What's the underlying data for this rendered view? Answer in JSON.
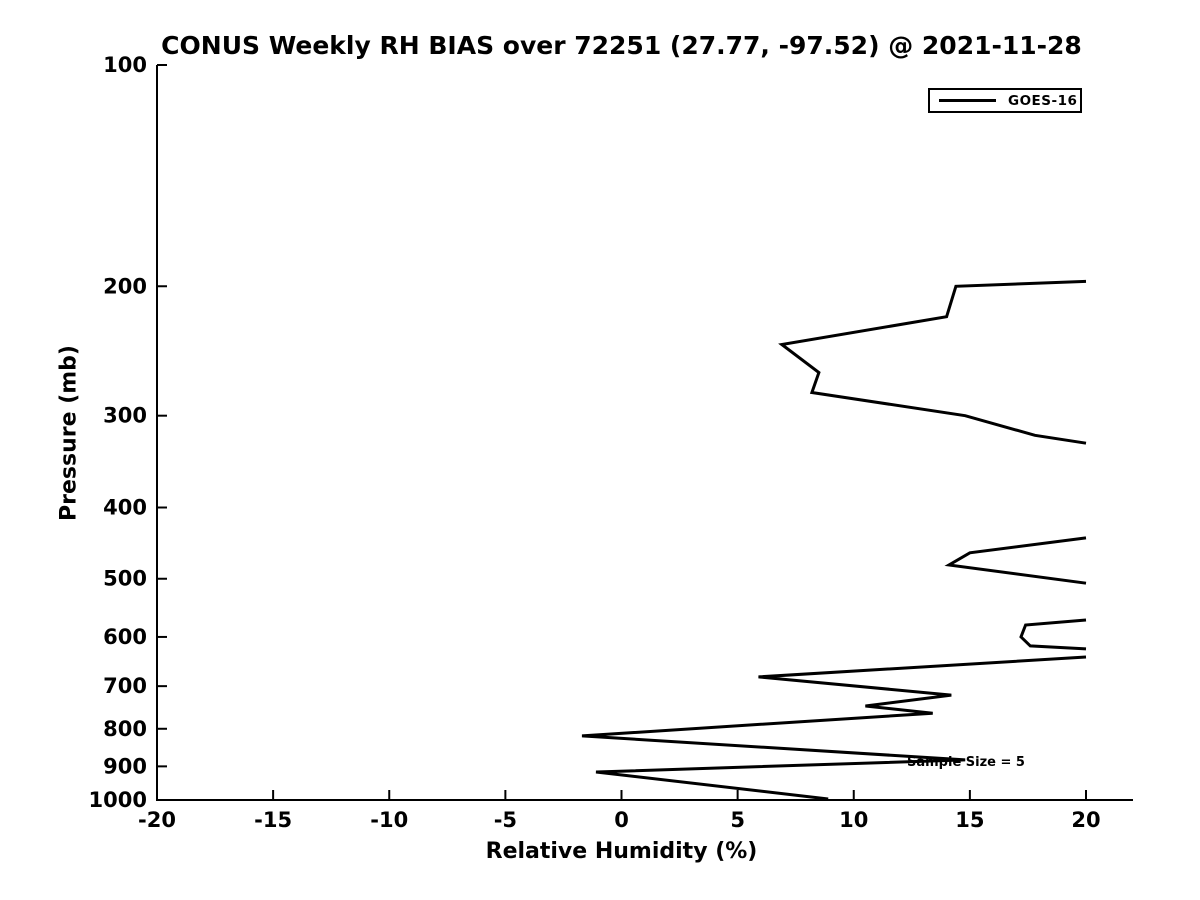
{
  "chart_data": {
    "type": "line",
    "title": "CONUS Weekly RH BIAS over 72251 (27.77, -97.52) @ 2021-11-28",
    "xlabel": "Relative Humidity (%)",
    "ylabel": "Pressure (mb)",
    "xlim": [
      -20,
      20
    ],
    "ylim": [
      1000,
      100
    ],
    "y_scale": "log",
    "x_ticks": [
      -20,
      -15,
      -10,
      -5,
      0,
      5,
      10,
      15,
      20
    ],
    "y_ticks": [
      100,
      200,
      300,
      400,
      500,
      600,
      700,
      800,
      900,
      1000
    ],
    "grid": false,
    "background_color": "#ffffff",
    "axis_color": "#000000",
    "legend": {
      "position": "upper right",
      "entries": [
        {
          "label": "GOES-16",
          "color": "#000000"
        }
      ]
    },
    "annotation": {
      "text": "Sample Size = 5",
      "sample_size": 5,
      "location": "overlapping curve near 14% RH / 880 mb"
    },
    "points_format": "[rh_bias_percent, pressure_mb]",
    "series": [
      {
        "name": "GOES-16",
        "color": "#000000",
        "line_width": 3,
        "clip_note": "RH bias exceeds +20% (off scale right) between segments; curve is clipped at the right edge",
        "segments": [
          [
            [
              20,
              197
            ],
            [
              14.4,
              200
            ],
            [
              14.0,
              220
            ],
            [
              6.9,
              240
            ],
            [
              8.5,
              262
            ],
            [
              8.2,
              279
            ],
            [
              14.8,
              300
            ],
            [
              17.8,
              319
            ],
            [
              20,
              327
            ]
          ],
          [
            [
              20,
              440
            ],
            [
              15.0,
              461
            ],
            [
              14.1,
              479
            ],
            [
              20,
              507
            ]
          ],
          [
            [
              20,
              569
            ],
            [
              17.4,
              578
            ],
            [
              17.2,
              600
            ],
            [
              17.6,
              617
            ],
            [
              20,
              623
            ]
          ],
          [
            [
              20,
              639
            ],
            [
              5.9,
              680
            ],
            [
              14.2,
              720
            ],
            [
              10.5,
              745
            ],
            [
              13.4,
              762
            ],
            [
              -1.7,
              818
            ],
            [
              14.8,
              882
            ],
            [
              -1.1,
              916
            ],
            [
              8.9,
              997
            ]
          ]
        ]
      }
    ]
  }
}
